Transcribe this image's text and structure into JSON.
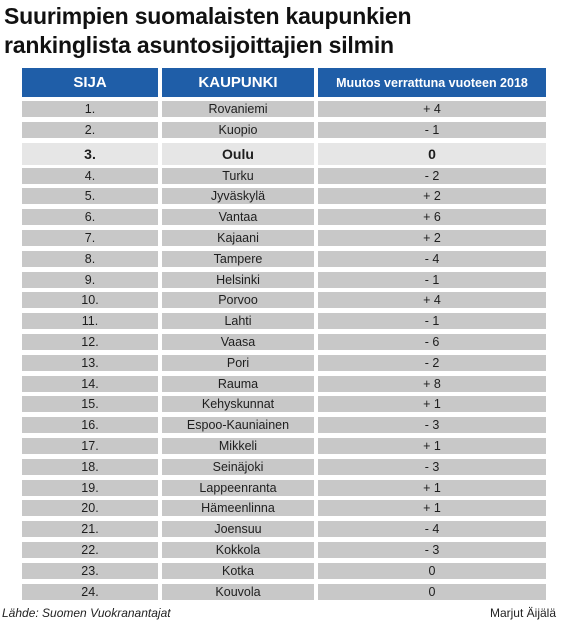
{
  "title": "Suurimpien suomalaisten kaupunkien rankinglista asuntosijoittajien silmin",
  "source": "Lähde: Suomen Vuokranantajat",
  "author": "Marjut Äijälä",
  "chart_data": {
    "type": "table",
    "columns": [
      "SIJA",
      "KAUPUNKI",
      "Muutos verrattuna vuoteen 2018"
    ],
    "highlight_row": 2,
    "rows": [
      [
        "1.",
        "Rovaniemi",
        "+ 4"
      ],
      [
        "2.",
        "Kuopio",
        "- 1"
      ],
      [
        "3.",
        "Oulu",
        "0"
      ],
      [
        "4.",
        "Turku",
        "- 2"
      ],
      [
        "5.",
        "Jyväskylä",
        "+ 2"
      ],
      [
        "6.",
        "Vantaa",
        "+ 6"
      ],
      [
        "7.",
        "Kajaani",
        "+ 2"
      ],
      [
        "8.",
        "Tampere",
        "- 4"
      ],
      [
        "9.",
        "Helsinki",
        "- 1"
      ],
      [
        "10.",
        "Porvoo",
        "+ 4"
      ],
      [
        "11.",
        "Lahti",
        "- 1"
      ],
      [
        "12.",
        "Vaasa",
        "- 6"
      ],
      [
        "13.",
        "Pori",
        "- 2"
      ],
      [
        "14.",
        "Rauma",
        "+ 8"
      ],
      [
        "15.",
        "Kehyskunnat",
        "+ 1"
      ],
      [
        "16.",
        "Espoo-Kauniainen",
        "- 3"
      ],
      [
        "17.",
        "Mikkeli",
        "+ 1"
      ],
      [
        "18.",
        "Seinäjoki",
        "- 3"
      ],
      [
        "19.",
        "Lappeenranta",
        "+ 1"
      ],
      [
        "20.",
        "Hämeenlinna",
        "+ 1"
      ],
      [
        "21.",
        "Joensuu",
        "- 4"
      ],
      [
        "22.",
        "Kokkola",
        "- 3"
      ],
      [
        "23.",
        "Kotka",
        "0"
      ],
      [
        "24.",
        "Kouvola",
        "0"
      ]
    ]
  }
}
